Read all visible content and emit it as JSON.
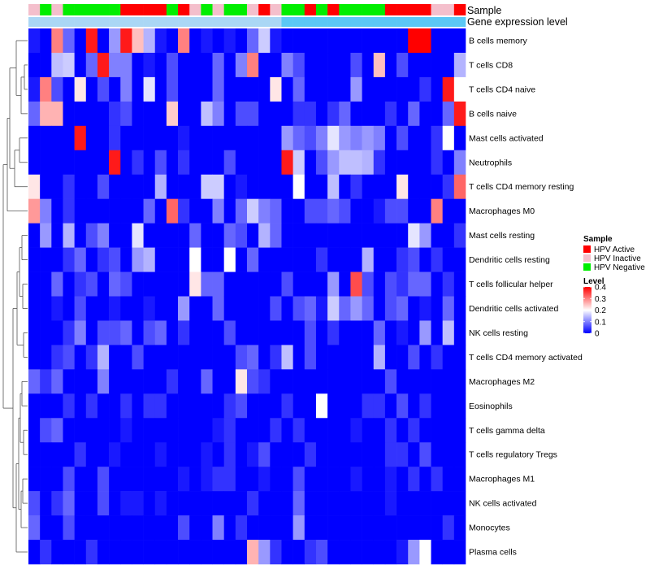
{
  "chart_data": {
    "type": "heatmap",
    "annotation_labels": {
      "sample": "Sample",
      "gene_expression": "Gene expression level"
    },
    "rows": [
      "B cells memory",
      "T cells CD8",
      "T cells CD4 naive",
      "B cells naive",
      "Mast cells activated",
      "Neutrophils",
      "T cells CD4 memory resting",
      "Macrophages M0",
      "Mast cells resting",
      "Dendritic cells resting",
      "T cells follicular helper",
      "Dendritic cells activated",
      "NK cells resting",
      "T cells CD4 memory activated",
      "Macrophages M2",
      "Eosinophils",
      "T cells gamma delta",
      "T cells regulatory  Tregs",
      "Macrophages M1",
      "NK cells activated",
      "Monocytes",
      "Plasma cells"
    ],
    "sample_groups": [
      "HPV Inactive",
      "HPV Negative",
      "HPV Inactive",
      "HPV Negative",
      "HPV Negative",
      "HPV Negative",
      "HPV Negative",
      "HPV Negative",
      "HPV Active",
      "HPV Active",
      "HPV Active",
      "HPV Active",
      "HPV Negative",
      "HPV Active",
      "HPV Inactive",
      "HPV Negative",
      "HPV Inactive",
      "HPV Negative",
      "HPV Negative",
      "HPV Inactive",
      "HPV Active",
      "HPV Inactive",
      "HPV Negative",
      "HPV Negative",
      "HPV Active",
      "HPV Negative",
      "HPV Active",
      "HPV Negative",
      "HPV Negative",
      "HPV Negative",
      "HPV Negative",
      "HPV Active",
      "HPV Active",
      "HPV Active",
      "HPV Active",
      "HPV Inactive",
      "HPV Inactive",
      "HPV Active"
    ],
    "gene_expression_levels": [
      0.18,
      0.18,
      0.18,
      0.18,
      0.18,
      0.18,
      0.18,
      0.18,
      0.18,
      0.18,
      0.18,
      0.18,
      0.18,
      0.18,
      0.18,
      0.18,
      0.18,
      0.18,
      0.18,
      0.18,
      0.18,
      0.18,
      0.22,
      0.22,
      0.22,
      0.22,
      0.22,
      0.22,
      0.22,
      0.22,
      0.22,
      0.22,
      0.22,
      0.22,
      0.22,
      0.22,
      0.22,
      0.22
    ],
    "values": [
      [
        0.02,
        0.0,
        0.3,
        0.08,
        0.0,
        0.38,
        0.0,
        0.12,
        0.38,
        0.25,
        0.14,
        0.02,
        0.0,
        0.3,
        0.0,
        0.02,
        0.0,
        0.02,
        0.0,
        0.08,
        0.16,
        0.02,
        0.0,
        0.0,
        0.0,
        0.0,
        0.0,
        0.0,
        0.0,
        0.0,
        0.0,
        0.0,
        0.0,
        0.4,
        0.4,
        0.0,
        0.0,
        0.0
      ],
      [
        0.0,
        0.0,
        0.15,
        0.16,
        0.0,
        0.08,
        0.38,
        0.1,
        0.1,
        0.0,
        0.02,
        0.0,
        0.06,
        0.0,
        0.0,
        0.0,
        0.08,
        0.0,
        0.1,
        0.3,
        0.0,
        0.0,
        0.1,
        0.06,
        0.0,
        0.0,
        0.0,
        0.0,
        0.06,
        0.0,
        0.25,
        0.0,
        0.06,
        0.0,
        0.0,
        0.0,
        0.0,
        0.14
      ],
      [
        0.02,
        0.3,
        0.06,
        0.0,
        0.22,
        0.0,
        0.06,
        0.0,
        0.1,
        0.0,
        0.18,
        0.0,
        0.06,
        0.0,
        0.0,
        0.0,
        0.08,
        0.0,
        0.0,
        0.0,
        0.0,
        0.22,
        0.0,
        0.08,
        0.0,
        0.0,
        0.0,
        0.0,
        0.12,
        0.0,
        0.0,
        0.0,
        0.0,
        0.0,
        0.04,
        0.0,
        0.38,
        0.2
      ],
      [
        0.08,
        0.26,
        0.26,
        0.0,
        0.0,
        0.0,
        0.0,
        0.04,
        0.06,
        0.0,
        0.0,
        0.0,
        0.24,
        0.0,
        0.0,
        0.15,
        0.1,
        0.0,
        0.06,
        0.06,
        0.0,
        0.0,
        0.0,
        0.04,
        0.04,
        0.0,
        0.04,
        0.08,
        0.0,
        0.0,
        0.0,
        0.04,
        0.0,
        0.08,
        0.0,
        0.0,
        0.08,
        0.38
      ],
      [
        0.0,
        0.0,
        0.0,
        0.0,
        0.38,
        0.0,
        0.0,
        0.04,
        0.0,
        0.0,
        0.0,
        0.0,
        0.0,
        0.02,
        0.0,
        0.0,
        0.0,
        0.0,
        0.0,
        0.0,
        0.0,
        0.0,
        0.12,
        0.08,
        0.06,
        0.1,
        0.18,
        0.12,
        0.1,
        0.12,
        0.1,
        0.0,
        0.06,
        0.0,
        0.0,
        0.04,
        0.2,
        0.0
      ],
      [
        0.0,
        0.0,
        0.0,
        0.0,
        0.0,
        0.0,
        0.0,
        0.38,
        0.0,
        0.04,
        0.0,
        0.06,
        0.0,
        0.04,
        0.0,
        0.0,
        0.0,
        0.06,
        0.0,
        0.0,
        0.0,
        0.0,
        0.38,
        0.16,
        0.0,
        0.06,
        0.12,
        0.15,
        0.15,
        0.14,
        0.04,
        0.0,
        0.0,
        0.0,
        0.0,
        0.04,
        0.0,
        0.1
      ],
      [
        0.22,
        0.0,
        0.0,
        0.04,
        0.0,
        0.0,
        0.06,
        0.0,
        0.0,
        0.0,
        0.0,
        0.14,
        0.0,
        0.0,
        0.0,
        0.16,
        0.16,
        0.0,
        0.02,
        0.0,
        0.0,
        0.0,
        0.0,
        0.2,
        0.0,
        0.0,
        0.15,
        0.0,
        0.04,
        0.0,
        0.0,
        0.0,
        0.22,
        0.0,
        0.0,
        0.0,
        0.04,
        0.32
      ],
      [
        0.28,
        0.1,
        0.0,
        0.04,
        0.0,
        0.0,
        0.0,
        0.0,
        0.0,
        0.0,
        0.08,
        0.0,
        0.32,
        0.04,
        0.0,
        0.0,
        0.1,
        0.0,
        0.08,
        0.16,
        0.1,
        0.08,
        0.0,
        0.0,
        0.06,
        0.06,
        0.08,
        0.06,
        0.0,
        0.0,
        0.02,
        0.06,
        0.06,
        0.0,
        0.0,
        0.3,
        0.0,
        0.0
      ],
      [
        0.0,
        0.12,
        0.0,
        0.14,
        0.0,
        0.06,
        0.1,
        0.0,
        0.0,
        0.18,
        0.0,
        0.0,
        0.0,
        0.0,
        0.08,
        0.0,
        0.0,
        0.08,
        0.06,
        0.0,
        0.14,
        0.08,
        0.0,
        0.0,
        0.0,
        0.0,
        0.0,
        0.0,
        0.0,
        0.0,
        0.0,
        0.0,
        0.0,
        0.18,
        0.12,
        0.0,
        0.0,
        0.04
      ],
      [
        0.0,
        0.0,
        0.0,
        0.04,
        0.08,
        0.0,
        0.04,
        0.06,
        0.0,
        0.12,
        0.14,
        0.0,
        0.0,
        0.0,
        0.2,
        0.0,
        0.0,
        0.2,
        0.0,
        0.08,
        0.0,
        0.0,
        0.0,
        0.0,
        0.0,
        0.04,
        0.0,
        0.0,
        0.0,
        0.14,
        0.0,
        0.0,
        0.04,
        0.06,
        0.0,
        0.04,
        0.0,
        0.0
      ],
      [
        0.0,
        0.0,
        0.08,
        0.0,
        0.04,
        0.06,
        0.0,
        0.08,
        0.06,
        0.0,
        0.0,
        0.0,
        0.0,
        0.0,
        0.22,
        0.08,
        0.08,
        0.0,
        0.0,
        0.0,
        0.0,
        0.0,
        0.06,
        0.0,
        0.0,
        0.0,
        0.12,
        0.0,
        0.34,
        0.06,
        0.0,
        0.06,
        0.04,
        0.08,
        0.08,
        0.0,
        0.04,
        0.0
      ],
      [
        0.0,
        0.0,
        0.02,
        0.0,
        0.06,
        0.0,
        0.0,
        0.02,
        0.0,
        0.0,
        0.02,
        0.0,
        0.0,
        0.12,
        0.0,
        0.0,
        0.08,
        0.0,
        0.0,
        0.0,
        0.0,
        0.06,
        0.0,
        0.06,
        0.08,
        0.02,
        0.16,
        0.08,
        0.12,
        0.08,
        0.0,
        0.06,
        0.08,
        0.0,
        0.02,
        0.0,
        0.08,
        0.0
      ],
      [
        0.0,
        0.0,
        0.0,
        0.04,
        0.1,
        0.0,
        0.06,
        0.06,
        0.08,
        0.0,
        0.06,
        0.08,
        0.0,
        0.04,
        0.0,
        0.0,
        0.0,
        0.06,
        0.0,
        0.0,
        0.0,
        0.0,
        0.0,
        0.0,
        0.06,
        0.0,
        0.04,
        0.0,
        0.0,
        0.0,
        0.08,
        0.0,
        0.02,
        0.0,
        0.12,
        0.0,
        0.15,
        0.0
      ],
      [
        0.0,
        0.0,
        0.04,
        0.06,
        0.0,
        0.04,
        0.14,
        0.0,
        0.0,
        0.06,
        0.0,
        0.0,
        0.0,
        0.0,
        0.0,
        0.0,
        0.0,
        0.0,
        0.06,
        0.08,
        0.0,
        0.04,
        0.15,
        0.0,
        0.06,
        0.0,
        0.0,
        0.0,
        0.0,
        0.0,
        0.14,
        0.0,
        0.0,
        0.06,
        0.0,
        0.04,
        0.0,
        0.0
      ],
      [
        0.08,
        0.04,
        0.08,
        0.0,
        0.0,
        0.0,
        0.1,
        0.0,
        0.0,
        0.0,
        0.0,
        0.0,
        0.04,
        0.0,
        0.0,
        0.08,
        0.0,
        0.0,
        0.22,
        0.06,
        0.04,
        0.0,
        0.0,
        0.0,
        0.0,
        0.0,
        0.0,
        0.0,
        0.0,
        0.0,
        0.0,
        0.06,
        0.0,
        0.0,
        0.0,
        0.0,
        0.0,
        0.0
      ],
      [
        0.0,
        0.0,
        0.0,
        0.04,
        0.0,
        0.04,
        0.0,
        0.0,
        0.04,
        0.0,
        0.04,
        0.04,
        0.0,
        0.0,
        0.0,
        0.0,
        0.0,
        0.04,
        0.06,
        0.0,
        0.0,
        0.0,
        0.04,
        0.0,
        0.0,
        0.2,
        0.0,
        0.0,
        0.0,
        0.04,
        0.04,
        0.0,
        0.06,
        0.0,
        0.04,
        0.0,
        0.0,
        0.0
      ],
      [
        0.0,
        0.06,
        0.08,
        0.0,
        0.0,
        0.0,
        0.0,
        0.0,
        0.02,
        0.0,
        0.0,
        0.0,
        0.0,
        0.0,
        0.0,
        0.0,
        0.02,
        0.04,
        0.0,
        0.0,
        0.0,
        0.04,
        0.0,
        0.04,
        0.0,
        0.0,
        0.0,
        0.0,
        0.02,
        0.0,
        0.0,
        0.04,
        0.0,
        0.04,
        0.0,
        0.0,
        0.0,
        0.0
      ],
      [
        0.0,
        0.0,
        0.0,
        0.0,
        0.04,
        0.0,
        0.0,
        0.02,
        0.0,
        0.0,
        0.0,
        0.02,
        0.0,
        0.0,
        0.0,
        0.02,
        0.0,
        0.04,
        0.0,
        0.02,
        0.06,
        0.0,
        0.0,
        0.0,
        0.04,
        0.0,
        0.0,
        0.0,
        0.0,
        0.0,
        0.0,
        0.04,
        0.04,
        0.0,
        0.06,
        0.0,
        0.0,
        0.0
      ],
      [
        0.0,
        0.0,
        0.0,
        0.06,
        0.0,
        0.0,
        0.06,
        0.0,
        0.0,
        0.0,
        0.0,
        0.0,
        0.0,
        0.02,
        0.0,
        0.02,
        0.04,
        0.04,
        0.0,
        0.0,
        0.02,
        0.0,
        0.0,
        0.06,
        0.0,
        0.0,
        0.0,
        0.0,
        0.02,
        0.0,
        0.0,
        0.02,
        0.0,
        0.04,
        0.0,
        0.04,
        0.0,
        0.0
      ],
      [
        0.06,
        0.0,
        0.04,
        0.08,
        0.0,
        0.0,
        0.06,
        0.0,
        0.02,
        0.02,
        0.0,
        0.02,
        0.0,
        0.0,
        0.0,
        0.0,
        0.0,
        0.0,
        0.0,
        0.04,
        0.0,
        0.0,
        0.0,
        0.08,
        0.0,
        0.0,
        0.0,
        0.0,
        0.0,
        0.0,
        0.0,
        0.02,
        0.0,
        0.0,
        0.0,
        0.0,
        0.0,
        0.0
      ],
      [
        0.08,
        0.0,
        0.0,
        0.06,
        0.0,
        0.0,
        0.0,
        0.0,
        0.0,
        0.0,
        0.0,
        0.0,
        0.0,
        0.06,
        0.0,
        0.0,
        0.1,
        0.0,
        0.04,
        0.0,
        0.0,
        0.0,
        0.0,
        0.12,
        0.0,
        0.0,
        0.0,
        0.0,
        0.0,
        0.0,
        0.0,
        0.0,
        0.0,
        0.0,
        0.0,
        0.0,
        0.04,
        0.0
      ],
      [
        0.0,
        0.04,
        0.0,
        0.0,
        0.0,
        0.04,
        0.0,
        0.0,
        0.0,
        0.0,
        0.0,
        0.0,
        0.0,
        0.0,
        0.0,
        0.0,
        0.0,
        0.0,
        0.0,
        0.26,
        0.12,
        0.04,
        0.0,
        0.0,
        0.04,
        0.06,
        0.0,
        0.0,
        0.0,
        0.0,
        0.0,
        0.0,
        0.02,
        0.12,
        0.2,
        0.0,
        0.0,
        0.0
      ]
    ],
    "color_scale": {
      "min": 0,
      "max": 0.4,
      "low_color": "#0000ff",
      "mid_color": "#ffffff",
      "high_color": "#ff0000",
      "midpoint": 0.2
    },
    "gene_expression_color": "#5bc8f5",
    "legend": {
      "sample": {
        "title": "Sample",
        "entries": [
          {
            "label": "HPV Active",
            "color": "#ff0000"
          },
          {
            "label": "HPV Inactive",
            "color": "#f4bfcc"
          },
          {
            "label": "HPV Negative",
            "color": "#00ee00"
          }
        ]
      },
      "level": {
        "title": "Level",
        "ticks": [
          "0.4",
          "0.3",
          "0.2",
          "0.1",
          "0"
        ],
        "tick_values": [
          0.4,
          0.3,
          0.2,
          0.1,
          0
        ]
      }
    }
  }
}
